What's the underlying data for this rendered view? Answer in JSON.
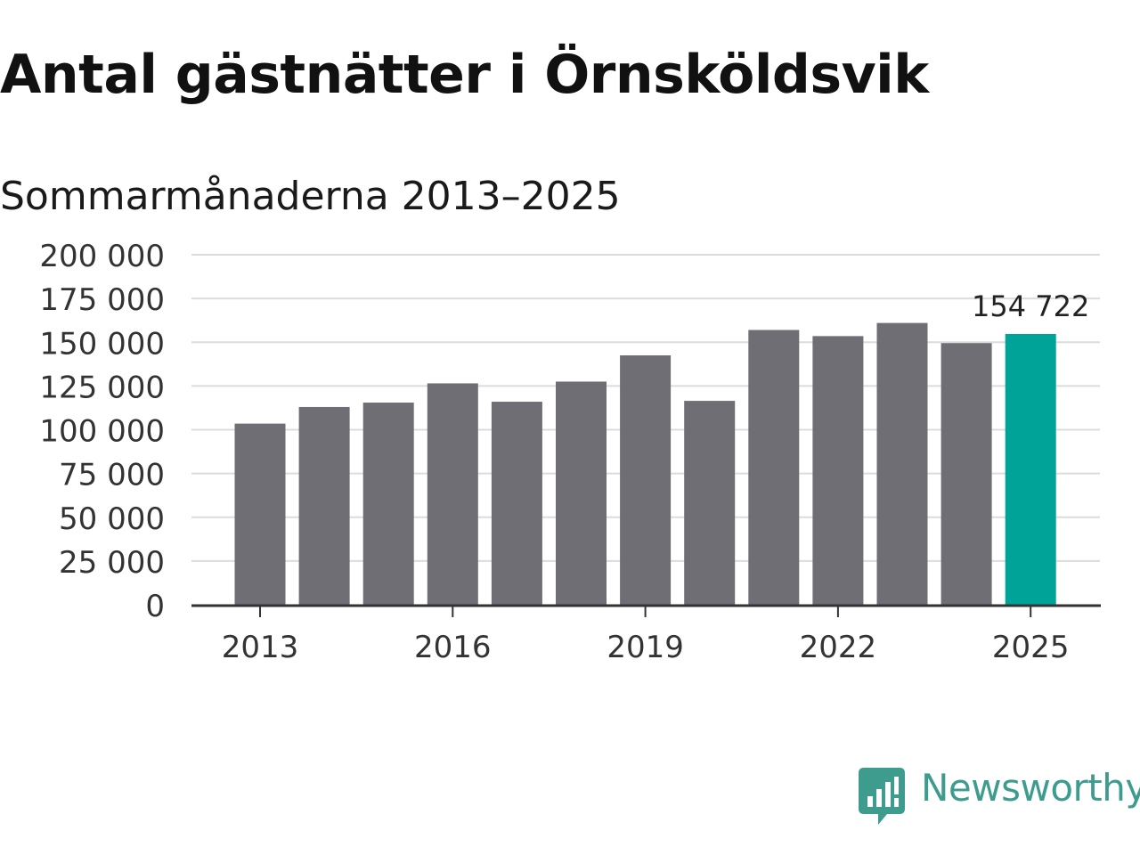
{
  "header": {
    "title": "Antal gästnätter i Örnsköldsvik",
    "subtitle": "Sommarmånaderna 2013–2025"
  },
  "logo": {
    "text": "Newsworthy",
    "icon": "newsworthy-logo-icon",
    "color": "#3d9c8e"
  },
  "chart_data": {
    "type": "bar",
    "categories": [
      "2013",
      "2014",
      "2015",
      "2016",
      "2017",
      "2018",
      "2019",
      "2020",
      "2021",
      "2022",
      "2023",
      "2024",
      "2025"
    ],
    "values": [
      103500,
      113000,
      115500,
      126500,
      116000,
      127500,
      142500,
      116500,
      157000,
      153500,
      161000,
      149500,
      154722
    ],
    "x_tick_labels": [
      "2013",
      "2016",
      "2019",
      "2022",
      "2025"
    ],
    "y_ticks": [
      0,
      25000,
      50000,
      75000,
      100000,
      125000,
      150000,
      175000,
      200000
    ],
    "y_tick_labels": [
      "0",
      "25 000",
      "50 000",
      "75 000",
      "100 000",
      "125 000",
      "150 000",
      "175 000",
      "200 000"
    ],
    "ylim": [
      0,
      200000
    ],
    "annotation": {
      "category": "2025",
      "label": "154 722"
    },
    "bar_color": "#6f6e75",
    "highlight_color": "#00a398",
    "highlight_category": "2025",
    "grid": true,
    "xlabel": "",
    "ylabel": ""
  }
}
